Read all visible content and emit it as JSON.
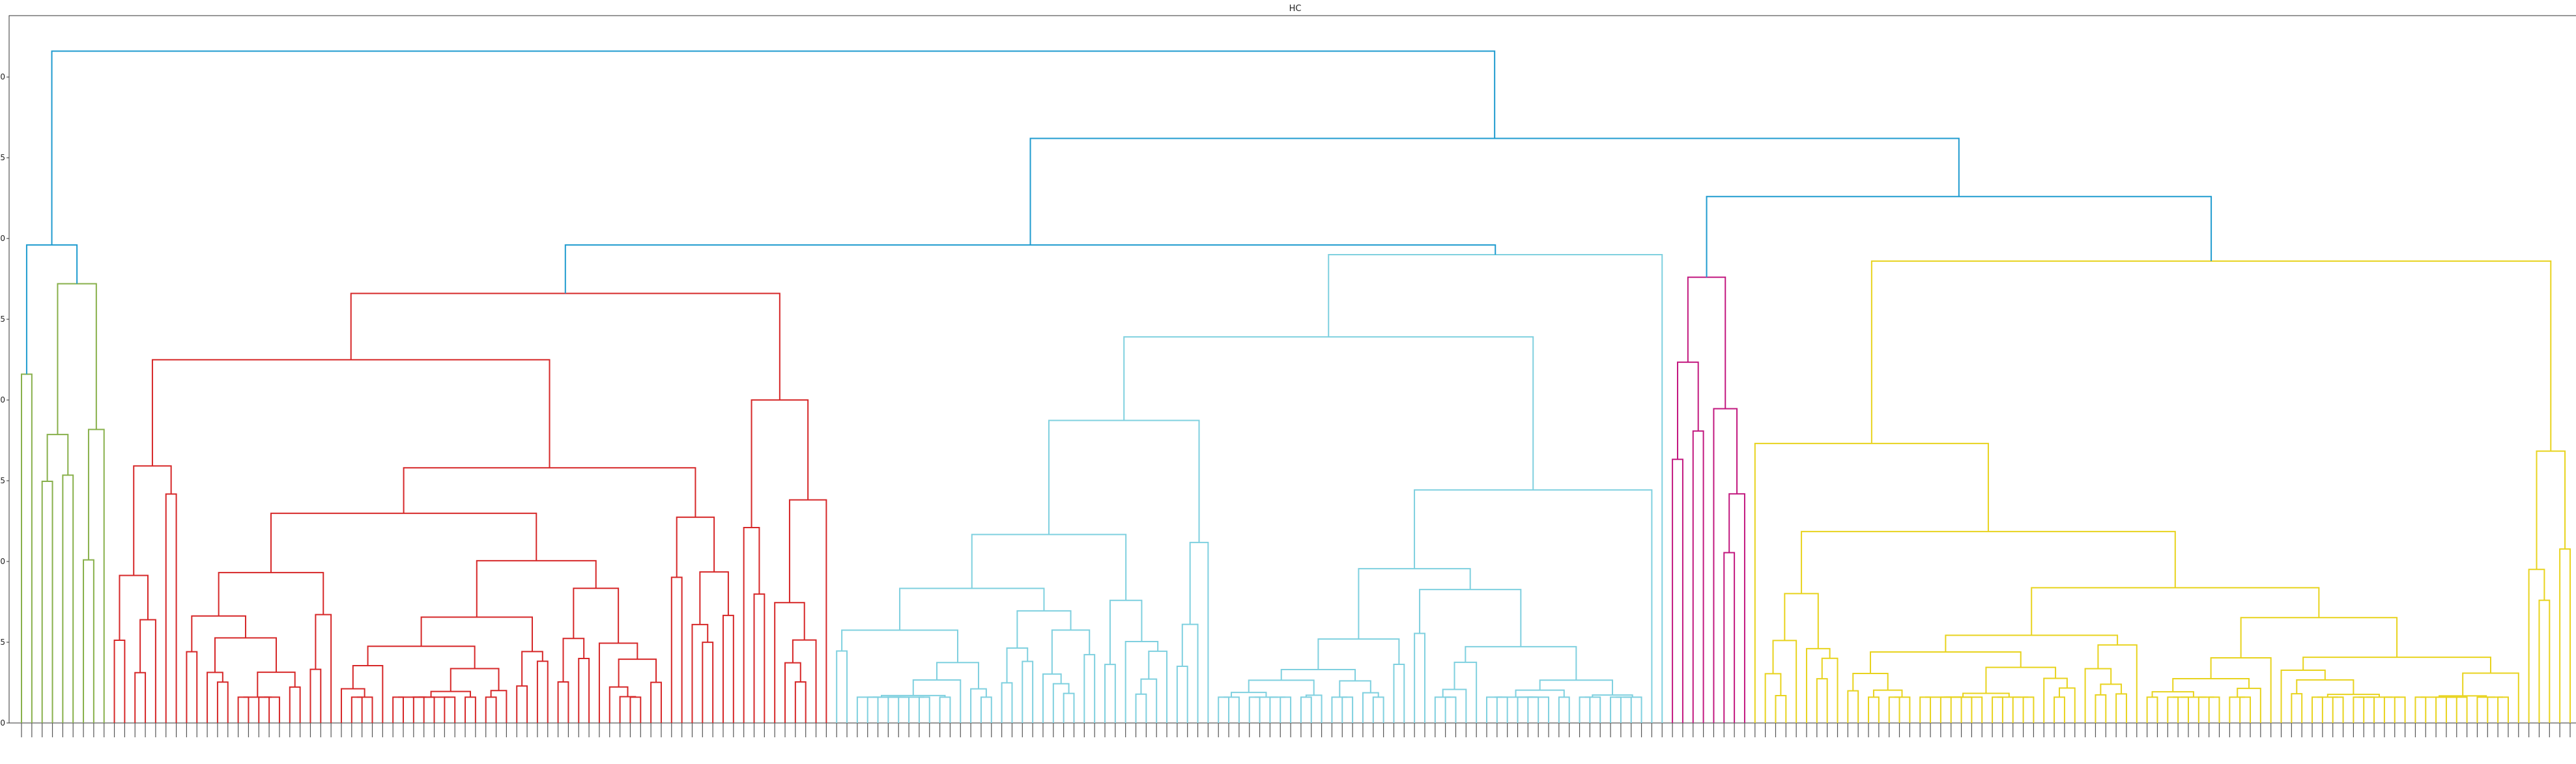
{
  "chart_data": {
    "type": "dendrogram",
    "title": "HC",
    "xlabel": "",
    "ylabel": "",
    "ylim": [
      0,
      21.9
    ],
    "yticks": [
      "0.0",
      "2.5",
      "5.0",
      "7.5",
      "10.0",
      "12.5",
      "15.0",
      "17.5",
      "20.0"
    ],
    "grid": false,
    "top_merges": [
      {
        "height": 20.8,
        "joins": [
          "left outlier clade",
          "rest"
        ]
      },
      {
        "height": 18.1,
        "joins": [
          "red + cyan clusters",
          "magenta + yellow clusters"
        ]
      },
      {
        "height": 16.3,
        "joins": [
          "magenta cluster",
          "yellow cluster"
        ]
      },
      {
        "height": 14.8,
        "joins": [
          "green outlier clade",
          "leftmost leaves"
        ]
      },
      {
        "height": 14.8,
        "joins": [
          "red cluster",
          "cyan cluster"
        ]
      }
    ],
    "series": [
      {
        "name": "",
        "color": "#1f9bcf",
        "role": "links above threshold"
      },
      {
        "name": "",
        "color": "#88b04b",
        "leaves": 7,
        "merge_height": 13.6
      },
      {
        "name": "",
        "color": "#d62728",
        "leaves": 70,
        "merge_height": 13.3
      },
      {
        "name": "",
        "color": "#7fd0df",
        "leaves": 81,
        "merge_height": 14.5
      },
      {
        "name": "",
        "color": "#c2187f",
        "leaves": 8,
        "merge_height": 13.8
      },
      {
        "name": "",
        "color": "#e8d31e",
        "leaves": 80,
        "merge_height": 14.3
      }
    ],
    "leaf_labels_note": "leaf labels are dense and unreadable at this resolution"
  }
}
